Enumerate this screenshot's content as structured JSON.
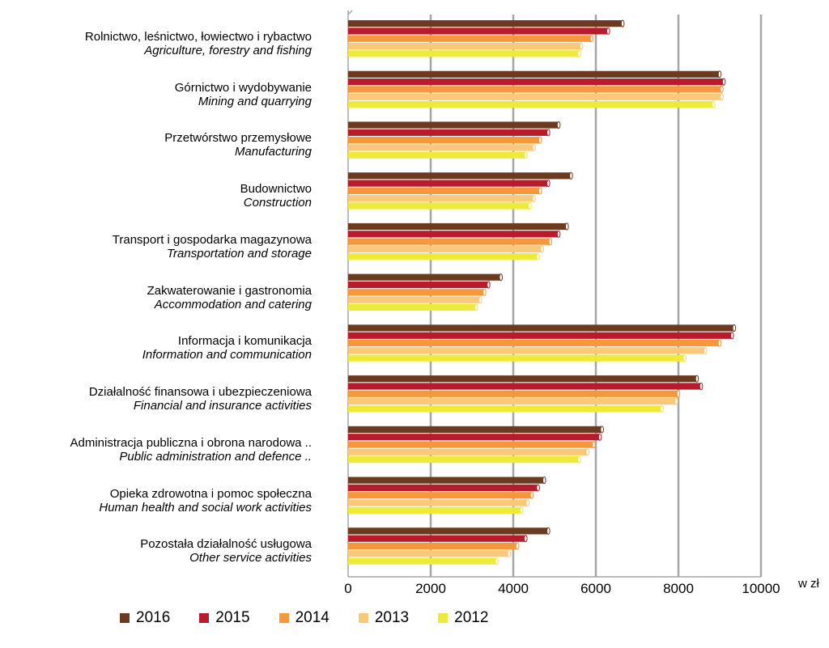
{
  "chart_data": {
    "type": "bar",
    "orientation": "horizontal",
    "categories": [
      {
        "pl": "Rolnictwo, leśnictwo, łowiectwo i rybactwo",
        "en": "Agriculture, forestry and fishing"
      },
      {
        "pl": "Górnictwo i wydobywanie",
        "en": "Mining and quarrying"
      },
      {
        "pl": "Przetwórstwo przemysłowe",
        "en": "Manufacturing"
      },
      {
        "pl": "Budownictwo",
        "en": "Construction"
      },
      {
        "pl": "Transport i gospodarka magazynowa",
        "en": "Transportation and storage"
      },
      {
        "pl": "Zakwaterowanie i gastronomia",
        "en": "Accommodation and catering"
      },
      {
        "pl": "Informacja i komunikacja",
        "en": "Information and communication"
      },
      {
        "pl": "Działalność finansowa i ubezpieczeniowa",
        "en": "Financial and insurance activities"
      },
      {
        "pl": "Administracja publiczna i obrona narodowa ..",
        "en": "Public administration and defence .."
      },
      {
        "pl": "Opieka zdrowotna i pomoc społeczna",
        "en": "Human health and social work activities"
      },
      {
        "pl": "Pozostała działalność usługowa",
        "en": "Other service activities"
      }
    ],
    "series": [
      {
        "name": "2016",
        "color": "#6b3a1f",
        "values": [
          6650,
          9000,
          5100,
          5400,
          5300,
          3700,
          9350,
          8450,
          6150,
          4750,
          4850
        ]
      },
      {
        "name": "2015",
        "color": "#b81c2c",
        "values": [
          6300,
          9100,
          4850,
          4850,
          5100,
          3400,
          9300,
          8550,
          6100,
          4600,
          4300
        ]
      },
      {
        "name": "2014",
        "color": "#f5973a",
        "values": [
          5900,
          9050,
          4650,
          4650,
          4900,
          3300,
          9000,
          8000,
          5950,
          4450,
          4100
        ]
      },
      {
        "name": "2013",
        "color": "#f9c878",
        "values": [
          5650,
          9050,
          4500,
          4500,
          4700,
          3200,
          8650,
          7950,
          5800,
          4350,
          3900
        ]
      },
      {
        "name": "2012",
        "color": "#eeea3a",
        "values": [
          5600,
          8850,
          4300,
          4400,
          4600,
          3100,
          8150,
          7600,
          5600,
          4200,
          3600
        ]
      }
    ],
    "x_ticks": [
      "0",
      "2000",
      "4000",
      "6000",
      "8000",
      "10000"
    ],
    "xlim": [
      0,
      10000
    ],
    "xlabel": "w zł",
    "grid": true,
    "legend_position": "bottom"
  }
}
